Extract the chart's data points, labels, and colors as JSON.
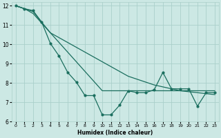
{
  "xlabel": "Humidex (Indice chaleur)",
  "background_color": "#cce8e4",
  "grid_color": "#aacfca",
  "line_color": "#1a6e5e",
  "xlim": [
    -0.5,
    23.5
  ],
  "ylim": [
    6,
    12.2
  ],
  "yticks": [
    6,
    7,
    8,
    9,
    10,
    11,
    12
  ],
  "xticks": [
    0,
    1,
    2,
    3,
    4,
    5,
    6,
    7,
    8,
    9,
    10,
    11,
    12,
    13,
    14,
    15,
    16,
    17,
    18,
    19,
    20,
    21,
    22,
    23
  ],
  "line1_x": [
    0,
    1,
    2,
    3,
    4,
    5,
    6,
    7,
    8,
    9,
    10,
    11,
    12,
    13,
    14,
    15,
    16,
    17,
    18,
    19,
    20,
    21,
    22,
    23
  ],
  "line1_y": [
    12.0,
    11.85,
    11.6,
    11.1,
    10.6,
    10.1,
    9.6,
    9.1,
    8.6,
    8.1,
    7.6,
    7.6,
    7.6,
    7.6,
    7.6,
    7.6,
    7.6,
    7.6,
    7.6,
    7.6,
    7.6,
    7.6,
    7.6,
    7.6
  ],
  "line2_x": [
    0,
    1,
    2,
    3,
    4,
    5,
    6,
    7,
    8,
    9,
    10,
    11,
    12,
    13,
    14,
    15,
    16,
    17,
    18,
    19,
    20,
    21,
    22,
    23
  ],
  "line2_y": [
    12.0,
    11.85,
    11.7,
    11.15,
    10.6,
    10.35,
    10.1,
    9.85,
    9.6,
    9.35,
    9.1,
    8.85,
    8.6,
    8.35,
    8.2,
    8.05,
    7.9,
    7.8,
    7.7,
    7.6,
    7.55,
    7.5,
    7.45,
    7.4
  ],
  "line3_x": [
    0,
    1,
    2,
    3,
    4,
    5,
    6,
    7,
    8,
    9,
    10,
    11,
    12,
    13,
    14,
    15,
    16,
    17,
    18,
    19,
    20,
    21,
    22,
    23
  ],
  "line3_y": [
    12.0,
    11.85,
    11.75,
    11.15,
    10.05,
    9.4,
    8.55,
    8.05,
    7.35,
    7.35,
    6.35,
    6.35,
    6.85,
    7.6,
    7.5,
    7.5,
    7.65,
    8.55,
    7.7,
    7.7,
    7.7,
    6.8,
    7.5,
    7.5
  ]
}
